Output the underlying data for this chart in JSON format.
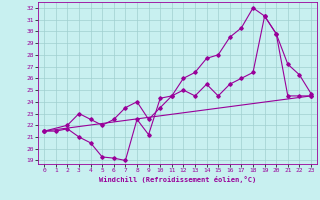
{
  "xlabel": "Windchill (Refroidissement éolien,°C)",
  "bg_color": "#c8f0f0",
  "line_color": "#990099",
  "grid_color": "#a0d0d0",
  "xlim": [
    -0.5,
    23.5
  ],
  "ylim": [
    18.7,
    32.5
  ],
  "xticks": [
    0,
    1,
    2,
    3,
    4,
    5,
    6,
    7,
    8,
    9,
    10,
    11,
    12,
    13,
    14,
    15,
    16,
    17,
    18,
    19,
    20,
    21,
    22,
    23
  ],
  "yticks": [
    19,
    20,
    21,
    22,
    23,
    24,
    25,
    26,
    27,
    28,
    29,
    30,
    31,
    32
  ],
  "line1_x": [
    0,
    1,
    2,
    3,
    4,
    5,
    6,
    7,
    8,
    9,
    10,
    11,
    12,
    13,
    14,
    15,
    16,
    17,
    18,
    19,
    20,
    21,
    22,
    23
  ],
  "line1_y": [
    21.5,
    21.5,
    21.7,
    21.0,
    20.5,
    19.3,
    19.2,
    19.0,
    22.5,
    21.2,
    24.3,
    24.5,
    26.0,
    26.5,
    27.7,
    28.0,
    29.5,
    30.3,
    32.0,
    31.3,
    29.8,
    27.2,
    26.3,
    24.7
  ],
  "line2_x": [
    0,
    2,
    3,
    4,
    5,
    6,
    7,
    8,
    9,
    10,
    11,
    12,
    13,
    14,
    15,
    16,
    17,
    18,
    19,
    20,
    21,
    22,
    23
  ],
  "line2_y": [
    21.5,
    22.0,
    23.0,
    22.5,
    22.0,
    22.5,
    23.5,
    24.0,
    22.5,
    23.5,
    24.5,
    25.0,
    24.5,
    25.5,
    24.5,
    25.5,
    26.0,
    26.5,
    31.3,
    29.8,
    24.5,
    24.5,
    24.5
  ],
  "line3_x": [
    0,
    23
  ],
  "line3_y": [
    21.5,
    24.5
  ]
}
